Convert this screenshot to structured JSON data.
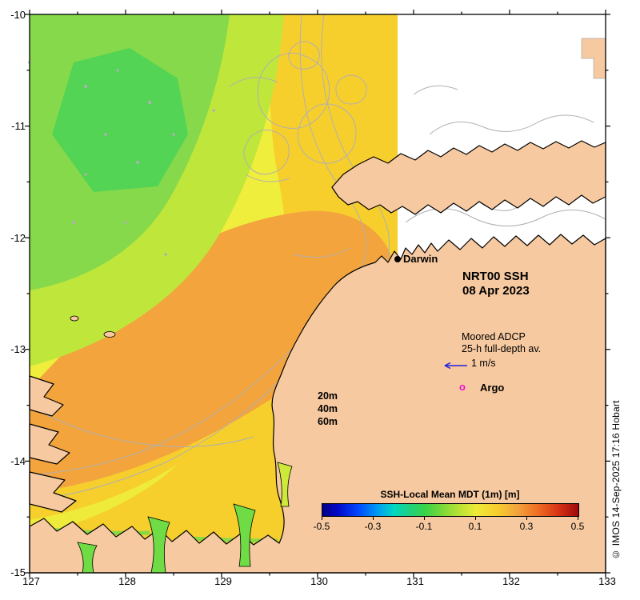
{
  "figure": {
    "title": "NRT00 SSH",
    "date": "08 Apr 2023",
    "credit": "© IMOS 14-Sep-2025 17:16 Hobart"
  },
  "axes": {
    "x_ticks": [
      "127",
      "128",
      "129",
      "130",
      "131",
      "132",
      "133"
    ],
    "y_ticks": [
      "-10",
      "-11",
      "-12",
      "-13",
      "-14",
      "-15"
    ]
  },
  "annotations": {
    "darwin": "Darwin",
    "adcp_line1": "Moored ADCP",
    "adcp_line2": "25-h full-depth av.",
    "adcp_line3": "1 m/s",
    "argo_marker": "o",
    "argo_label": "Argo",
    "depth_20": "20m",
    "depth_40": "40m",
    "depth_60": "60m"
  },
  "colorbar": {
    "title": "SSH-Local Mean MDT (1m) [m]",
    "tick_labels": [
      "-0.5",
      "-0.3",
      "-0.1",
      "0.1",
      "0.3",
      "0.5"
    ]
  },
  "colors": {
    "land": "#f6c9a0",
    "ssh_green": "#86d94b",
    "ssh_dark_green": "#53d455",
    "ssh_yellow_green": "#bfe63b",
    "ssh_yellow": "#f0ee3c",
    "ssh_gold": "#f7cf2d",
    "ssh_orange": "#f3a43d",
    "no_data": "#ffffff",
    "bathymetry_contour": "#b0b0b0",
    "coastline": "#000000",
    "adcp_arrow": "#2020dd",
    "argo_magenta": "#ee10d0",
    "colorbar_min": "#000082",
    "colorbar_max": "#9c0a0a"
  },
  "chart_data": {
    "type": "heatmap",
    "title": "NRT00 SSH",
    "date": "08 Apr 2023",
    "field_name": "SSH-Local Mean MDT (1m) [m]",
    "xlim": [
      127,
      133
    ],
    "ylim": [
      -15,
      -10
    ],
    "x_ticks": [
      127,
      128,
      129,
      130,
      131,
      132,
      133
    ],
    "y_ticks": [
      -10,
      -11,
      -12,
      -13,
      -14,
      -15
    ],
    "grid": false,
    "colorbar": {
      "label": "SSH-Local Mean MDT (1m) [m]",
      "range": [
        -0.5,
        0.5
      ],
      "ticks": [
        -0.5,
        -0.3,
        -0.1,
        0.1,
        0.3,
        0.5
      ],
      "orientation": "horizontal"
    },
    "approx_field_values": [
      {
        "region": "far northwest offshore (127-128.3E, 10.3-12S)",
        "ssh_m": 0.0
      },
      {
        "region": "northwest band around green patch",
        "ssh_m": 0.05
      },
      {
        "region": "yellow band (128-130E north / nearshore south)",
        "ssh_m": 0.15
      },
      {
        "region": "gold band surrounding core",
        "ssh_m": 0.2
      },
      {
        "region": "central core Joseph Bonaparte Gulf / Timor Sea (128-130.7E, 12-14.3S)",
        "ssh_m": 0.3
      },
      {
        "region": "east of ~130.8E (Van Diemen Gulf / Arafura)",
        "ssh_m": null,
        "note": "no data (white)"
      }
    ],
    "markers": [
      {
        "name": "Darwin",
        "type": "city-dot",
        "approx_lon": 130.83,
        "approx_lat": -12.2
      }
    ],
    "legend_items": [
      {
        "symbol": "blue-left-arrow",
        "label": "Moored ADCP 25-h full-depth av. 1 m/s"
      },
      {
        "symbol": "magenta-o",
        "label": "Argo"
      }
    ],
    "bathymetry_contours_m": [
      20,
      40,
      60
    ]
  }
}
